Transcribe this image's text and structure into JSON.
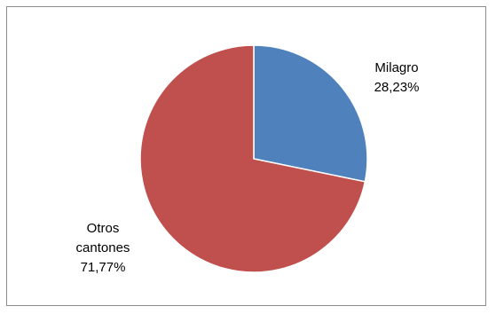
{
  "chart_data": {
    "type": "pie",
    "title": "",
    "slices": [
      {
        "label": "Milagro",
        "value": 28.23,
        "value_label": "28,23%",
        "color": "#4f81bd"
      },
      {
        "label": "Otros cantones",
        "value": 71.77,
        "value_label": "71,77%",
        "color": "#c0504d"
      }
    ],
    "start_angle": "12 o'clock",
    "direction": "clockwise",
    "legend": "none"
  }
}
